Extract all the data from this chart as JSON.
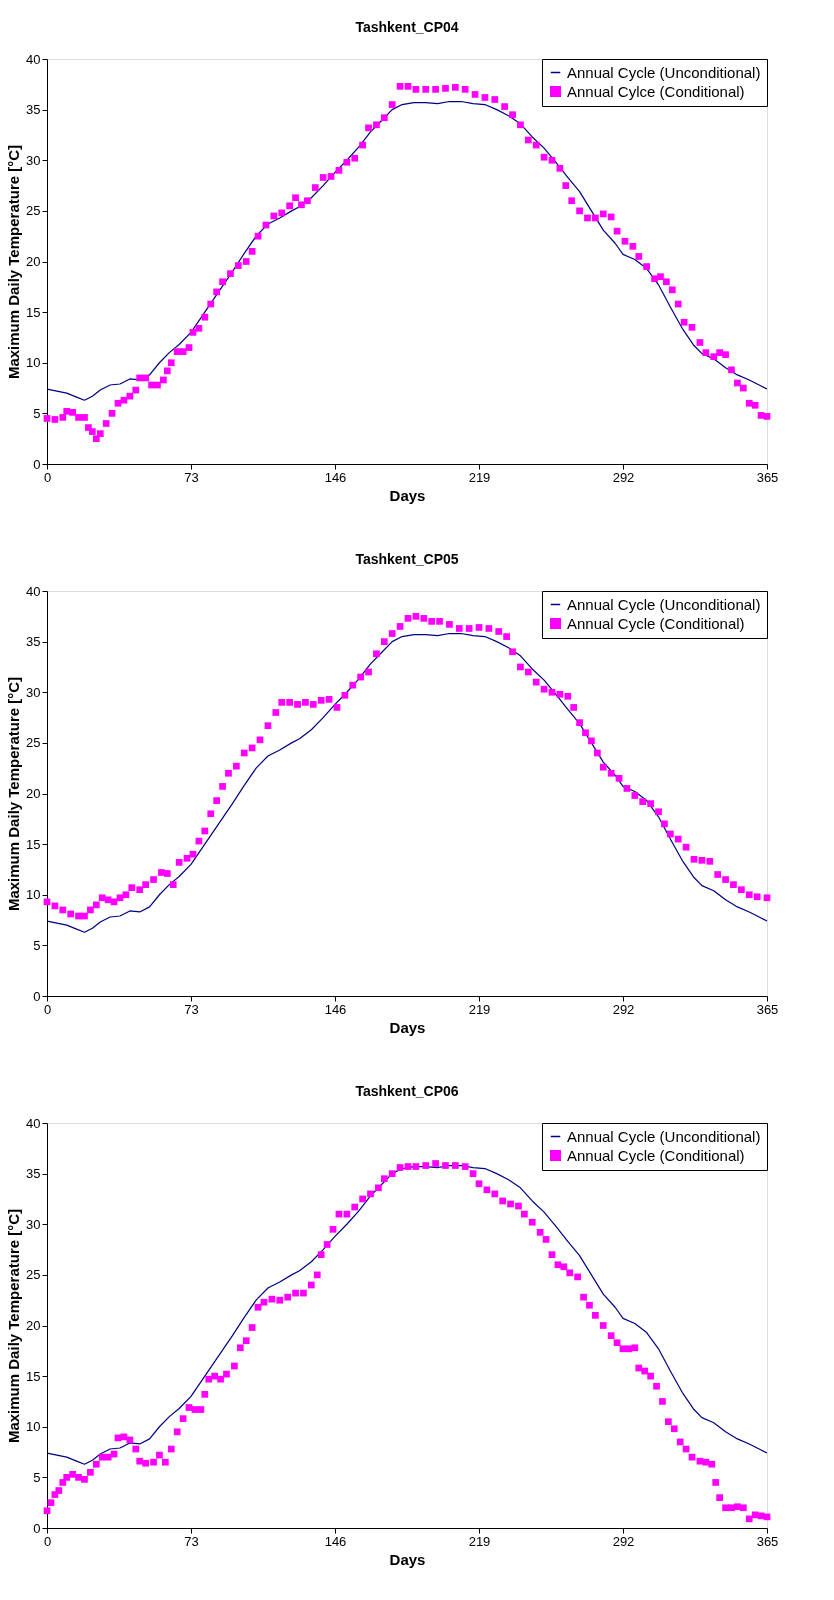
{
  "chart_data": [
    {
      "type": "line",
      "title": "Tashkent_CP04",
      "xlabel": "Days",
      "ylabel": "Maximum Daily Temperature [°C]",
      "xlim": [
        0,
        365
      ],
      "xticks": [
        0,
        73,
        146,
        219,
        292,
        365
      ],
      "ylim": [
        0,
        40
      ],
      "yticks": [
        0,
        5,
        10,
        15,
        20,
        25,
        30,
        35,
        40
      ],
      "grid": false,
      "legend": "top right",
      "series": [
        {
          "name": "Annual Cycle (Unconditional)",
          "marker": "none",
          "color": "#000080",
          "x": [
            0,
            5,
            10,
            15,
            19,
            23,
            27,
            32,
            37,
            42,
            47,
            52,
            57,
            62,
            67,
            73,
            80,
            87,
            94,
            100,
            106,
            112,
            118,
            124,
            128,
            134,
            140,
            146,
            152,
            158,
            164,
            170,
            175,
            180,
            186,
            192,
            198,
            204,
            210,
            216,
            222,
            228,
            234,
            240,
            246,
            252,
            258,
            264,
            270,
            276,
            282,
            288,
            292,
            298,
            304,
            310,
            316,
            322,
            328,
            332,
            338,
            344,
            350,
            356,
            362,
            365
          ],
          "values": [
            7.4,
            7.2,
            7.0,
            6.6,
            6.3,
            6.7,
            7.3,
            7.8,
            7.9,
            8.4,
            8.3,
            8.8,
            10.0,
            11.0,
            11.8,
            13.0,
            15.0,
            17.0,
            19.0,
            20.8,
            22.5,
            23.7,
            24.3,
            25.0,
            25.4,
            26.3,
            27.5,
            28.8,
            30.0,
            31.3,
            32.8,
            34.0,
            35.0,
            35.5,
            35.7,
            35.7,
            35.6,
            35.8,
            35.8,
            35.6,
            35.5,
            35.0,
            34.4,
            33.6,
            32.3,
            31.2,
            29.8,
            28.3,
            26.9,
            25.0,
            23.1,
            21.8,
            20.7,
            20.2,
            19.3,
            17.7,
            15.5,
            13.4,
            11.7,
            10.9,
            10.4,
            9.5,
            8.8,
            8.3,
            7.7,
            7.4
          ]
        },
        {
          "name": "Annual Cylce (Conditional)",
          "type": "scatter",
          "marker": "square",
          "color": "#ff00ff",
          "x": [
            0,
            4,
            8,
            10,
            13,
            16,
            19,
            21,
            23,
            25,
            27,
            30,
            33,
            36,
            39,
            42,
            45,
            47,
            50,
            53,
            56,
            59,
            61,
            63,
            66,
            69,
            72,
            74,
            77,
            80,
            83,
            86,
            89,
            93,
            97,
            101,
            104,
            107,
            111,
            115,
            119,
            123,
            126,
            129,
            132,
            136,
            140,
            144,
            148,
            152,
            156,
            160,
            163,
            167,
            171,
            175,
            179,
            183,
            187,
            192,
            197,
            202,
            207,
            212,
            217,
            222,
            227,
            232,
            236,
            240,
            244,
            248,
            252,
            256,
            260,
            263,
            266,
            270,
            274,
            278,
            282,
            286,
            289,
            293,
            297,
            300,
            304,
            308,
            311,
            314,
            317,
            320,
            323,
            327,
            331,
            334,
            338,
            341,
            344,
            347,
            350,
            353,
            356,
            359,
            362,
            365
          ],
          "values": [
            4.5,
            4.4,
            4.6,
            5.2,
            5.1,
            4.6,
            4.6,
            3.6,
            3.2,
            2.5,
            3.0,
            4.0,
            5.0,
            6.0,
            6.3,
            6.7,
            7.3,
            8.5,
            8.5,
            7.8,
            7.8,
            8.3,
            9.2,
            10.0,
            11.1,
            11.1,
            11.5,
            13.0,
            13.4,
            14.5,
            15.8,
            17.0,
            18.0,
            18.8,
            19.6,
            20.0,
            21.0,
            22.5,
            23.6,
            24.5,
            24.8,
            25.5,
            26.3,
            25.6,
            26.0,
            27.3,
            28.3,
            28.4,
            29.0,
            29.8,
            30.2,
            31.5,
            33.2,
            33.5,
            34.2,
            35.5,
            37.3,
            37.3,
            37.0,
            37.0,
            37.0,
            37.1,
            37.2,
            37.0,
            36.5,
            36.2,
            36.0,
            35.3,
            34.5,
            33.5,
            32.0,
            31.5,
            30.3,
            30.0,
            29.2,
            27.5,
            26.0,
            25.0,
            24.3,
            24.3,
            24.7,
            24.4,
            23.0,
            22.0,
            21.5,
            20.5,
            19.5,
            18.3,
            18.5,
            18.0,
            17.2,
            15.8,
            14.0,
            13.5,
            12.0,
            11.0,
            10.6,
            11.0,
            10.8,
            9.3,
            8.0,
            7.5,
            6.0,
            5.8,
            4.8,
            4.7
          ]
        }
      ]
    },
    {
      "type": "line",
      "title": "Tashkent_CP05",
      "xlabel": "Days",
      "ylabel": "Maximum Daily Temperature [°C]",
      "xlim": [
        0,
        365
      ],
      "xticks": [
        0,
        73,
        146,
        219,
        292,
        365
      ],
      "ylim": [
        0,
        40
      ],
      "yticks": [
        0,
        5,
        10,
        15,
        20,
        25,
        30,
        35,
        40
      ],
      "grid": false,
      "legend": "top right",
      "series": [
        {
          "name": "Annual Cycle (Unconditional)",
          "type": "line",
          "marker": "none",
          "color": "#000080",
          "x": [
            0,
            5,
            10,
            15,
            19,
            23,
            27,
            32,
            37,
            42,
            47,
            52,
            57,
            62,
            67,
            73,
            80,
            87,
            94,
            100,
            106,
            112,
            118,
            124,
            128,
            134,
            140,
            146,
            152,
            158,
            164,
            170,
            175,
            180,
            186,
            192,
            198,
            204,
            210,
            216,
            222,
            228,
            234,
            240,
            246,
            252,
            258,
            264,
            270,
            276,
            282,
            288,
            292,
            298,
            304,
            310,
            316,
            322,
            328,
            332,
            338,
            344,
            350,
            356,
            362,
            365
          ],
          "values": [
            7.4,
            7.2,
            7.0,
            6.6,
            6.3,
            6.7,
            7.3,
            7.8,
            7.9,
            8.4,
            8.3,
            8.8,
            10.0,
            11.0,
            11.8,
            13.0,
            15.0,
            17.0,
            19.0,
            20.8,
            22.5,
            23.7,
            24.3,
            25.0,
            25.4,
            26.3,
            27.5,
            28.8,
            30.0,
            31.3,
            32.8,
            34.0,
            35.0,
            35.5,
            35.7,
            35.7,
            35.6,
            35.8,
            35.8,
            35.6,
            35.5,
            35.0,
            34.4,
            33.6,
            32.3,
            31.2,
            29.8,
            28.3,
            26.9,
            25.0,
            23.1,
            21.8,
            20.7,
            20.2,
            19.3,
            17.7,
            15.5,
            13.4,
            11.7,
            10.9,
            10.4,
            9.5,
            8.8,
            8.3,
            7.7,
            7.4
          ]
        },
        {
          "name": "Annual Cycle (Conditional)",
          "type": "scatter",
          "marker": "square",
          "color": "#ff00ff",
          "x": [
            0,
            4,
            8,
            12,
            16,
            19,
            22,
            25,
            28,
            31,
            34,
            37,
            40,
            43,
            47,
            50,
            54,
            58,
            61,
            64,
            67,
            71,
            74,
            77,
            80,
            83,
            86,
            89,
            92,
            96,
            100,
            104,
            108,
            112,
            116,
            119,
            123,
            127,
            131,
            135,
            139,
            143,
            147,
            151,
            155,
            159,
            163,
            167,
            171,
            175,
            179,
            183,
            187,
            191,
            195,
            199,
            204,
            209,
            214,
            219,
            224,
            229,
            233,
            236,
            240,
            244,
            248,
            252,
            256,
            260,
            264,
            267,
            270,
            273,
            276,
            279,
            282,
            286,
            290,
            294,
            298,
            302,
            306,
            310,
            313,
            316,
            320,
            324,
            328,
            332,
            336,
            340,
            344,
            348,
            352,
            356,
            360,
            365
          ],
          "values": [
            9.3,
            8.9,
            8.5,
            8.1,
            7.9,
            7.9,
            8.5,
            9.0,
            9.7,
            9.5,
            9.3,
            9.7,
            10.0,
            10.7,
            10.5,
            11.0,
            11.5,
            12.2,
            12.1,
            11.0,
            13.2,
            13.6,
            14.0,
            15.3,
            16.3,
            18.0,
            19.3,
            20.7,
            22.0,
            22.7,
            24.0,
            24.5,
            25.3,
            26.7,
            28.0,
            29.0,
            29.0,
            28.8,
            29.0,
            28.8,
            29.2,
            29.3,
            28.5,
            29.7,
            30.7,
            31.5,
            32.0,
            33.8,
            35.0,
            35.8,
            36.5,
            37.3,
            37.5,
            37.3,
            37.0,
            37.0,
            36.7,
            36.3,
            36.3,
            36.4,
            36.3,
            36.0,
            35.5,
            34.0,
            32.5,
            32.0,
            31.0,
            30.3,
            30.0,
            29.8,
            29.6,
            28.5,
            27.0,
            26.0,
            25.2,
            24.0,
            22.6,
            22.0,
            21.5,
            20.5,
            19.8,
            19.2,
            19.0,
            18.2,
            17.0,
            16.0,
            15.5,
            14.7,
            13.5,
            13.4,
            13.3,
            12.0,
            11.5,
            11.0,
            10.5,
            10.0,
            9.8,
            9.7
          ]
        }
      ]
    },
    {
      "type": "line",
      "title": "Tashkent_CP06",
      "xlabel": "Days",
      "ylabel": "Maximum Daily Temperature [°C]",
      "xlim": [
        0,
        365
      ],
      "xticks": [
        0,
        73,
        146,
        219,
        292,
        365
      ],
      "ylim": [
        0,
        40
      ],
      "yticks": [
        0,
        5,
        10,
        15,
        20,
        25,
        30,
        35,
        40
      ],
      "grid": false,
      "legend": "top right",
      "series": [
        {
          "name": "Annual Cycle (Unconditional)",
          "type": "line",
          "marker": "none",
          "color": "#000080",
          "x": [
            0,
            5,
            10,
            15,
            19,
            23,
            27,
            32,
            37,
            42,
            47,
            52,
            57,
            62,
            67,
            73,
            80,
            87,
            94,
            100,
            106,
            112,
            118,
            124,
            128,
            134,
            140,
            146,
            152,
            158,
            164,
            170,
            175,
            180,
            186,
            192,
            198,
            204,
            210,
            216,
            222,
            228,
            234,
            240,
            246,
            252,
            258,
            264,
            270,
            276,
            282,
            288,
            292,
            298,
            304,
            310,
            316,
            322,
            328,
            332,
            338,
            344,
            350,
            356,
            362,
            365
          ],
          "values": [
            7.4,
            7.2,
            7.0,
            6.6,
            6.3,
            6.7,
            7.3,
            7.8,
            7.9,
            8.4,
            8.3,
            8.8,
            10.0,
            11.0,
            11.8,
            13.0,
            15.0,
            17.0,
            19.0,
            20.8,
            22.5,
            23.7,
            24.3,
            25.0,
            25.4,
            26.3,
            27.5,
            28.8,
            30.0,
            31.3,
            32.8,
            34.0,
            35.0,
            35.5,
            35.7,
            35.7,
            35.6,
            35.8,
            35.8,
            35.6,
            35.5,
            35.0,
            34.4,
            33.6,
            32.3,
            31.2,
            29.8,
            28.3,
            26.9,
            25.0,
            23.1,
            21.8,
            20.7,
            20.2,
            19.3,
            17.7,
            15.5,
            13.4,
            11.7,
            10.9,
            10.4,
            9.5,
            8.8,
            8.3,
            7.7,
            7.4
          ]
        },
        {
          "name": "Annual Cycle (Conditional)",
          "type": "scatter",
          "marker": "square",
          "color": "#ff00ff",
          "x": [
            0,
            2,
            4,
            6,
            8,
            10,
            13,
            16,
            19,
            22,
            25,
            28,
            31,
            34,
            36,
            39,
            42,
            45,
            47,
            50,
            54,
            57,
            60,
            63,
            66,
            69,
            72,
            75,
            78,
            80,
            82,
            85,
            88,
            91,
            95,
            98,
            101,
            104,
            107,
            110,
            114,
            118,
            122,
            126,
            130,
            134,
            137,
            139,
            142,
            145,
            148,
            152,
            156,
            160,
            164,
            168,
            171,
            175,
            179,
            183,
            187,
            192,
            197,
            202,
            207,
            212,
            216,
            219,
            223,
            227,
            231,
            235,
            239,
            242,
            246,
            250,
            253,
            256,
            259,
            262,
            265,
            269,
            272,
            275,
            278,
            282,
            286,
            289,
            292,
            295,
            298,
            300,
            303,
            306,
            309,
            312,
            315,
            318,
            321,
            324,
            327,
            331,
            334,
            337,
            339,
            341,
            344,
            347,
            350,
            353,
            356,
            359,
            362,
            365
          ],
          "values": [
            1.7,
            2.5,
            3.3,
            3.7,
            4.5,
            5.0,
            5.3,
            5.0,
            4.8,
            5.5,
            6.3,
            7.0,
            7.0,
            7.3,
            8.9,
            9.0,
            8.7,
            7.8,
            6.6,
            6.4,
            6.5,
            7.2,
            6.5,
            7.8,
            9.5,
            10.8,
            11.9,
            11.7,
            11.7,
            13.2,
            14.7,
            15.0,
            14.7,
            15.2,
            16.0,
            17.8,
            18.5,
            19.8,
            21.8,
            22.3,
            22.6,
            22.5,
            22.8,
            23.2,
            23.2,
            24.0,
            25.0,
            27.0,
            28.0,
            29.5,
            31.0,
            31.0,
            31.7,
            32.5,
            33.0,
            33.6,
            34.5,
            35.0,
            35.6,
            35.7,
            35.7,
            35.8,
            36.0,
            35.8,
            35.8,
            35.7,
            35.0,
            34.0,
            33.4,
            33.0,
            32.3,
            32.0,
            31.8,
            31.0,
            30.2,
            29.2,
            28.5,
            27.0,
            26.0,
            25.8,
            25.2,
            24.8,
            22.8,
            22.0,
            21.0,
            20.0,
            19.0,
            18.3,
            17.7,
            17.7,
            17.8,
            15.8,
            15.5,
            15.0,
            14.0,
            12.5,
            10.5,
            9.8,
            8.5,
            7.8,
            7.0,
            6.6,
            6.5,
            6.3,
            4.5,
            3.0,
            2.0,
            2.0,
            2.1,
            2.0,
            0.9,
            1.3,
            1.2,
            1.1
          ]
        }
      ]
    }
  ]
}
